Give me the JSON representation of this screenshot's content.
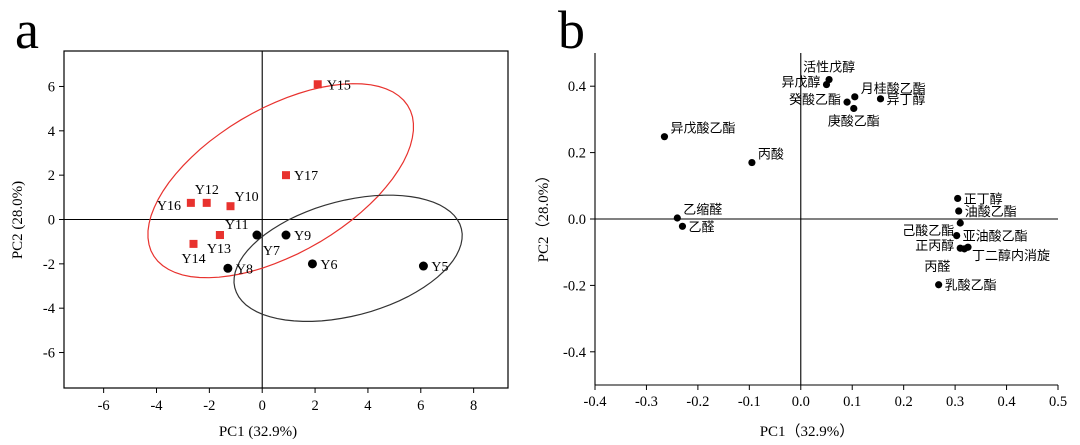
{
  "panels": [
    {
      "letter": "a"
    },
    {
      "letter": "b"
    }
  ],
  "chart_data": [
    {
      "type": "scatter",
      "panel": "a",
      "xlabel": "PC1 (32.9%)",
      "ylabel": "PC2 (28.0%)",
      "xlim": [
        -7.5,
        9.3
      ],
      "ylim": [
        -7.6,
        7.6
      ],
      "xticks": [
        -6,
        -4,
        -2,
        0,
        2,
        4,
        6,
        8
      ],
      "yticks": [
        -6,
        -4,
        -2,
        0,
        2,
        4,
        6
      ],
      "series": [
        {
          "name": "group-red",
          "marker": "square",
          "color": "#e8322e",
          "points": [
            {
              "label": "Y15",
              "x": 2.1,
              "y": 6.1
            },
            {
              "label": "Y17",
              "x": 0.9,
              "y": 2.0
            },
            {
              "label": "Y12",
              "x": -2.1,
              "y": 0.75
            },
            {
              "label": "Y16",
              "x": -2.7,
              "y": 0.75
            },
            {
              "label": "Y10",
              "x": -1.2,
              "y": 0.6
            },
            {
              "label": "Y11",
              "x": -1.6,
              "y": -0.7
            },
            {
              "label": "Y14",
              "x": -2.6,
              "y": -1.1
            },
            {
              "label": "Y13",
              "x": -1.6,
              "y": -0.7
            }
          ]
        },
        {
          "name": "group-black",
          "marker": "circle",
          "color": "#000000",
          "points": [
            {
              "label": "Y7",
              "x": -0.2,
              "y": -0.7
            },
            {
              "label": "Y9",
              "x": 0.9,
              "y": -0.7
            },
            {
              "label": "Y8",
              "x": -1.3,
              "y": -2.2
            },
            {
              "label": "Y6",
              "x": 1.9,
              "y": -2.0
            },
            {
              "label": "Y5",
              "x": 6.1,
              "y": -2.1
            }
          ]
        }
      ],
      "ellipses": [
        {
          "name": "red-group-ellipse",
          "color": "#e8322e",
          "cx": 0.7,
          "cy": 1.75,
          "rx": 5.9,
          "ry": 3.1,
          "angle_deg": 38
        },
        {
          "name": "black-group-ellipse",
          "color": "#333333",
          "cx": 3.25,
          "cy": -1.75,
          "rx": 4.5,
          "ry": 2.55,
          "angle_deg": 20
        }
      ]
    },
    {
      "type": "scatter",
      "panel": "b",
      "xlabel": "PC1（32.9%）",
      "ylabel": "PC2（28.0%）",
      "xlim": [
        -0.4,
        0.5
      ],
      "ylim": [
        -0.5,
        0.5
      ],
      "xticks": [
        -0.4,
        -0.3,
        -0.2,
        -0.1,
        0.0,
        0.1,
        0.2,
        0.3,
        0.4,
        0.5
      ],
      "xtick_labels": [
        "-0.4",
        "-0.3",
        "-0.2",
        "-0.1",
        "0.0",
        "0.1",
        "0.2",
        "0.3",
        "0.4",
        "0.5"
      ],
      "yticks": [
        -0.4,
        -0.2,
        0.0,
        0.2,
        0.4
      ],
      "ytick_labels": [
        "-0.4",
        "-0.2",
        "0.0",
        "0.2",
        "0.4"
      ],
      "points": [
        {
          "label": "活性戊醇",
          "x": 0.055,
          "y": 0.42,
          "anchor": "above"
        },
        {
          "label": "异戊醇",
          "x": 0.05,
          "y": 0.405,
          "anchor": "left"
        },
        {
          "label": "月桂酸乙酯",
          "x": 0.105,
          "y": 0.368,
          "anchor": "above-right"
        },
        {
          "label": "癸酸乙酯",
          "x": 0.09,
          "y": 0.352,
          "anchor": "left"
        },
        {
          "label": "异丁醇",
          "x": 0.155,
          "y": 0.362,
          "anchor": "right"
        },
        {
          "label": "庚酸乙酯",
          "x": 0.103,
          "y": 0.333,
          "anchor": "below"
        },
        {
          "label": "异戊酸乙酯",
          "x": -0.265,
          "y": 0.248,
          "anchor": "above-right"
        },
        {
          "label": "丙酸",
          "x": -0.095,
          "y": 0.17,
          "anchor": "above-right"
        },
        {
          "label": "正丁醇",
          "x": 0.305,
          "y": 0.062,
          "anchor": "right"
        },
        {
          "label": "油酸乙酯",
          "x": 0.307,
          "y": 0.024,
          "anchor": "right"
        },
        {
          "label": "己酸乙酯",
          "x": 0.31,
          "y": -0.012,
          "anchor": "left-below"
        },
        {
          "label": "亚油酸乙酯",
          "x": 0.303,
          "y": -0.05,
          "anchor": "right"
        },
        {
          "label": "正丙醇",
          "x": 0.31,
          "y": -0.088,
          "anchor": "left"
        },
        {
          "label": "丁二醇内消旋",
          "x": 0.325,
          "y": -0.085,
          "anchor": "right-below"
        },
        {
          "label": "丙醛",
          "x": 0.318,
          "y": -0.09,
          "anchor": "below-left"
        },
        {
          "label": "乳酸乙酯",
          "x": 0.268,
          "y": -0.198,
          "anchor": "right"
        },
        {
          "label": "乙缩醛",
          "x": -0.24,
          "y": 0.003,
          "anchor": "above-right"
        },
        {
          "label": "乙醛",
          "x": -0.23,
          "y": -0.022,
          "anchor": "right"
        }
      ]
    }
  ]
}
